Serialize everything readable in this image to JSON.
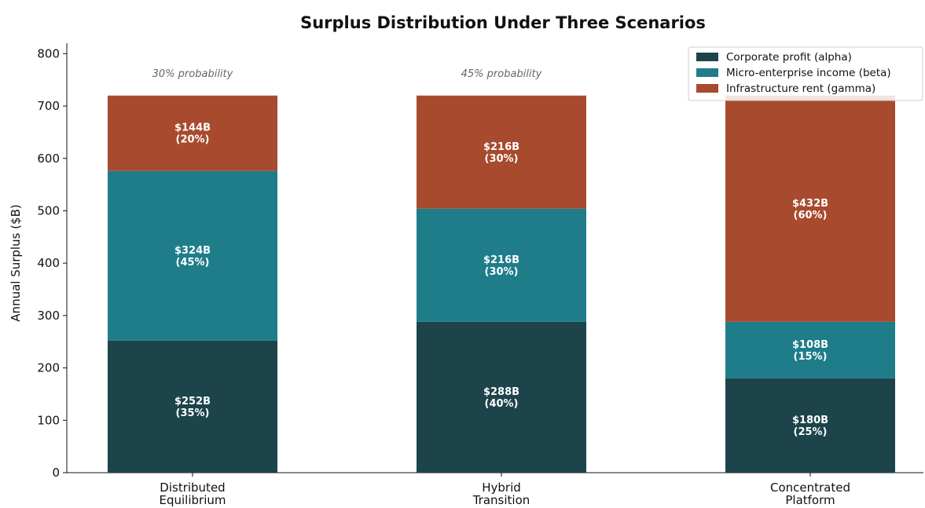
{
  "chart_data": {
    "type": "bar",
    "stacked": true,
    "title": "Surplus Distribution Under Three Scenarios",
    "ylabel": "Annual Surplus ($B)",
    "xlabel": "",
    "ylim": [
      0,
      820
    ],
    "yticks": [
      0,
      100,
      200,
      300,
      400,
      500,
      600,
      700,
      800
    ],
    "grid": false,
    "legend_position": "top-right",
    "categories": [
      [
        "Distributed",
        "Equilibrium"
      ],
      [
        "Hybrid",
        "Transition"
      ],
      [
        "Concentrated",
        "Platform"
      ]
    ],
    "annotations": [
      "30% probability",
      "45% probability",
      ""
    ],
    "series": [
      {
        "name": "Corporate profit (alpha)",
        "color": "#1d444b",
        "values": [
          252,
          288,
          180
        ],
        "labels": [
          [
            "$252B",
            "(35%)"
          ],
          [
            "$288B",
            "(40%)"
          ],
          [
            "$180B",
            "(25%)"
          ]
        ]
      },
      {
        "name": "Micro-enterprise income (beta)",
        "color": "#1f7d8a",
        "values": [
          324,
          216,
          108
        ],
        "labels": [
          [
            "$324B",
            "(45%)"
          ],
          [
            "$216B",
            "(30%)"
          ],
          [
            "$108B",
            "(15%)"
          ]
        ]
      },
      {
        "name": "Infrastructure rent (gamma)",
        "color": "#a84a2e",
        "values": [
          144,
          216,
          432
        ],
        "labels": [
          [
            "$144B",
            "(20%)"
          ],
          [
            "$216B",
            "(30%)"
          ],
          [
            "$432B",
            "(60%)"
          ]
        ]
      }
    ]
  }
}
